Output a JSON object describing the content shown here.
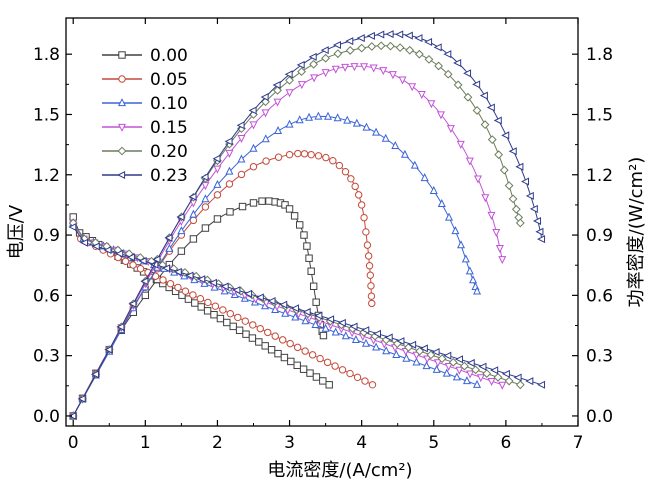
{
  "chart_data": {
    "type": "line",
    "xlabel": "电流密度/(A/cm²)",
    "ylabel_left": "电压/V",
    "ylabel_right": "功率密度/(W/cm²)",
    "xlim": [
      -0.1,
      7.0
    ],
    "ylim": [
      -0.05,
      1.98
    ],
    "x_ticks": [
      "0",
      "1",
      "2",
      "3",
      "4",
      "5",
      "6",
      "7"
    ],
    "y_ticks": [
      "0.0",
      "0.3",
      "0.6",
      "0.9",
      "1.2",
      "1.5",
      "1.8"
    ],
    "y_ticks_right": [
      "0.0",
      "0.3",
      "0.6",
      "0.9",
      "1.2",
      "1.5",
      "1.8"
    ],
    "x_tick_values": [
      0,
      1,
      2,
      3,
      4,
      5,
      6,
      7
    ],
    "y_tick_values": [
      0,
      0.3,
      0.6,
      0.9,
      1.2,
      1.5,
      1.8
    ],
    "legend_position": "top-left",
    "series": [
      {
        "name": "0.00",
        "color": "#404040",
        "marker": "square",
        "imax": 3.55,
        "v0": 0.93,
        "pmax": 1.07,
        "ipk": 2.62,
        "power": [
          [
            0,
            0
          ],
          [
            0.5,
            0.33
          ],
          [
            1.0,
            0.6
          ],
          [
            1.5,
            0.82
          ],
          [
            2.0,
            0.98
          ],
          [
            2.5,
            1.06
          ],
          [
            2.8,
            1.065
          ],
          [
            3.0,
            1.03
          ],
          [
            3.2,
            0.9
          ],
          [
            3.3,
            0.72
          ],
          [
            3.4,
            0.5
          ],
          [
            3.47,
            0.4
          ]
        ]
      },
      {
        "name": "0.05",
        "color": "#c44a3a",
        "marker": "circle",
        "imax": 4.15,
        "v0": 0.9,
        "pmax": 1.3,
        "ipk": 3.1,
        "power": [
          [
            0,
            0
          ],
          [
            0.5,
            0.33
          ],
          [
            1.0,
            0.64
          ],
          [
            1.5,
            0.9
          ],
          [
            2.0,
            1.1
          ],
          [
            2.5,
            1.24
          ],
          [
            3.0,
            1.3
          ],
          [
            3.3,
            1.3
          ],
          [
            3.6,
            1.27
          ],
          [
            3.85,
            1.18
          ],
          [
            4.0,
            1.05
          ],
          [
            4.08,
            0.85
          ],
          [
            4.12,
            0.7
          ],
          [
            4.14,
            0.56
          ]
        ]
      },
      {
        "name": "0.10",
        "color": "#3a64d8",
        "marker": "triangle-up",
        "imax": 5.6,
        "v0": 0.9,
        "pmax": 1.49,
        "ipk": 3.3,
        "power": [
          [
            0,
            0
          ],
          [
            0.5,
            0.32
          ],
          [
            1.0,
            0.64
          ],
          [
            1.5,
            0.92
          ],
          [
            2.0,
            1.15
          ],
          [
            2.5,
            1.33
          ],
          [
            3.0,
            1.45
          ],
          [
            3.4,
            1.49
          ],
          [
            3.8,
            1.47
          ],
          [
            4.2,
            1.41
          ],
          [
            4.6,
            1.3
          ],
          [
            5.0,
            1.12
          ],
          [
            5.3,
            0.92
          ],
          [
            5.5,
            0.72
          ],
          [
            5.6,
            0.62
          ]
        ]
      },
      {
        "name": "0.15",
        "color": "#c452d8",
        "marker": "triangle-down",
        "imax": 5.95,
        "v0": 0.9,
        "pmax": 1.74,
        "ipk": 3.9,
        "power": [
          [
            0,
            0
          ],
          [
            0.5,
            0.33
          ],
          [
            1.0,
            0.66
          ],
          [
            1.5,
            0.97
          ],
          [
            2.0,
            1.23
          ],
          [
            2.5,
            1.45
          ],
          [
            3.0,
            1.61
          ],
          [
            3.5,
            1.71
          ],
          [
            3.9,
            1.74
          ],
          [
            4.3,
            1.72
          ],
          [
            4.7,
            1.64
          ],
          [
            5.1,
            1.5
          ],
          [
            5.5,
            1.27
          ],
          [
            5.8,
            1.0
          ],
          [
            5.95,
            0.78
          ]
        ]
      },
      {
        "name": "0.20",
        "color": "#6b7d5b",
        "marker": "diamond",
        "imax": 6.2,
        "v0": 0.9,
        "pmax": 1.84,
        "ipk": 4.25,
        "power": [
          [
            0,
            0
          ],
          [
            0.5,
            0.33
          ],
          [
            1.0,
            0.67
          ],
          [
            1.5,
            0.99
          ],
          [
            2.0,
            1.27
          ],
          [
            2.5,
            1.5
          ],
          [
            3.0,
            1.67
          ],
          [
            3.5,
            1.78
          ],
          [
            4.0,
            1.83
          ],
          [
            4.4,
            1.84
          ],
          [
            4.8,
            1.8
          ],
          [
            5.2,
            1.7
          ],
          [
            5.6,
            1.52
          ],
          [
            5.9,
            1.3
          ],
          [
            6.1,
            1.08
          ],
          [
            6.2,
            0.96
          ]
        ]
      },
      {
        "name": "0.23",
        "color": "#2e3a8c",
        "marker": "triangle-left",
        "imax": 6.5,
        "v0": 0.88,
        "pmax": 1.9,
        "ipk": 4.4,
        "power": [
          [
            0,
            0
          ],
          [
            0.5,
            0.33
          ],
          [
            1.0,
            0.67
          ],
          [
            1.5,
            0.99
          ],
          [
            2.0,
            1.28
          ],
          [
            2.5,
            1.52
          ],
          [
            3.0,
            1.7
          ],
          [
            3.5,
            1.82
          ],
          [
            4.0,
            1.88
          ],
          [
            4.4,
            1.9
          ],
          [
            4.8,
            1.88
          ],
          [
            5.2,
            1.8
          ],
          [
            5.6,
            1.65
          ],
          [
            5.9,
            1.47
          ],
          [
            6.2,
            1.24
          ],
          [
            6.4,
            1.03
          ],
          [
            6.5,
            0.88
          ]
        ]
      }
    ]
  }
}
